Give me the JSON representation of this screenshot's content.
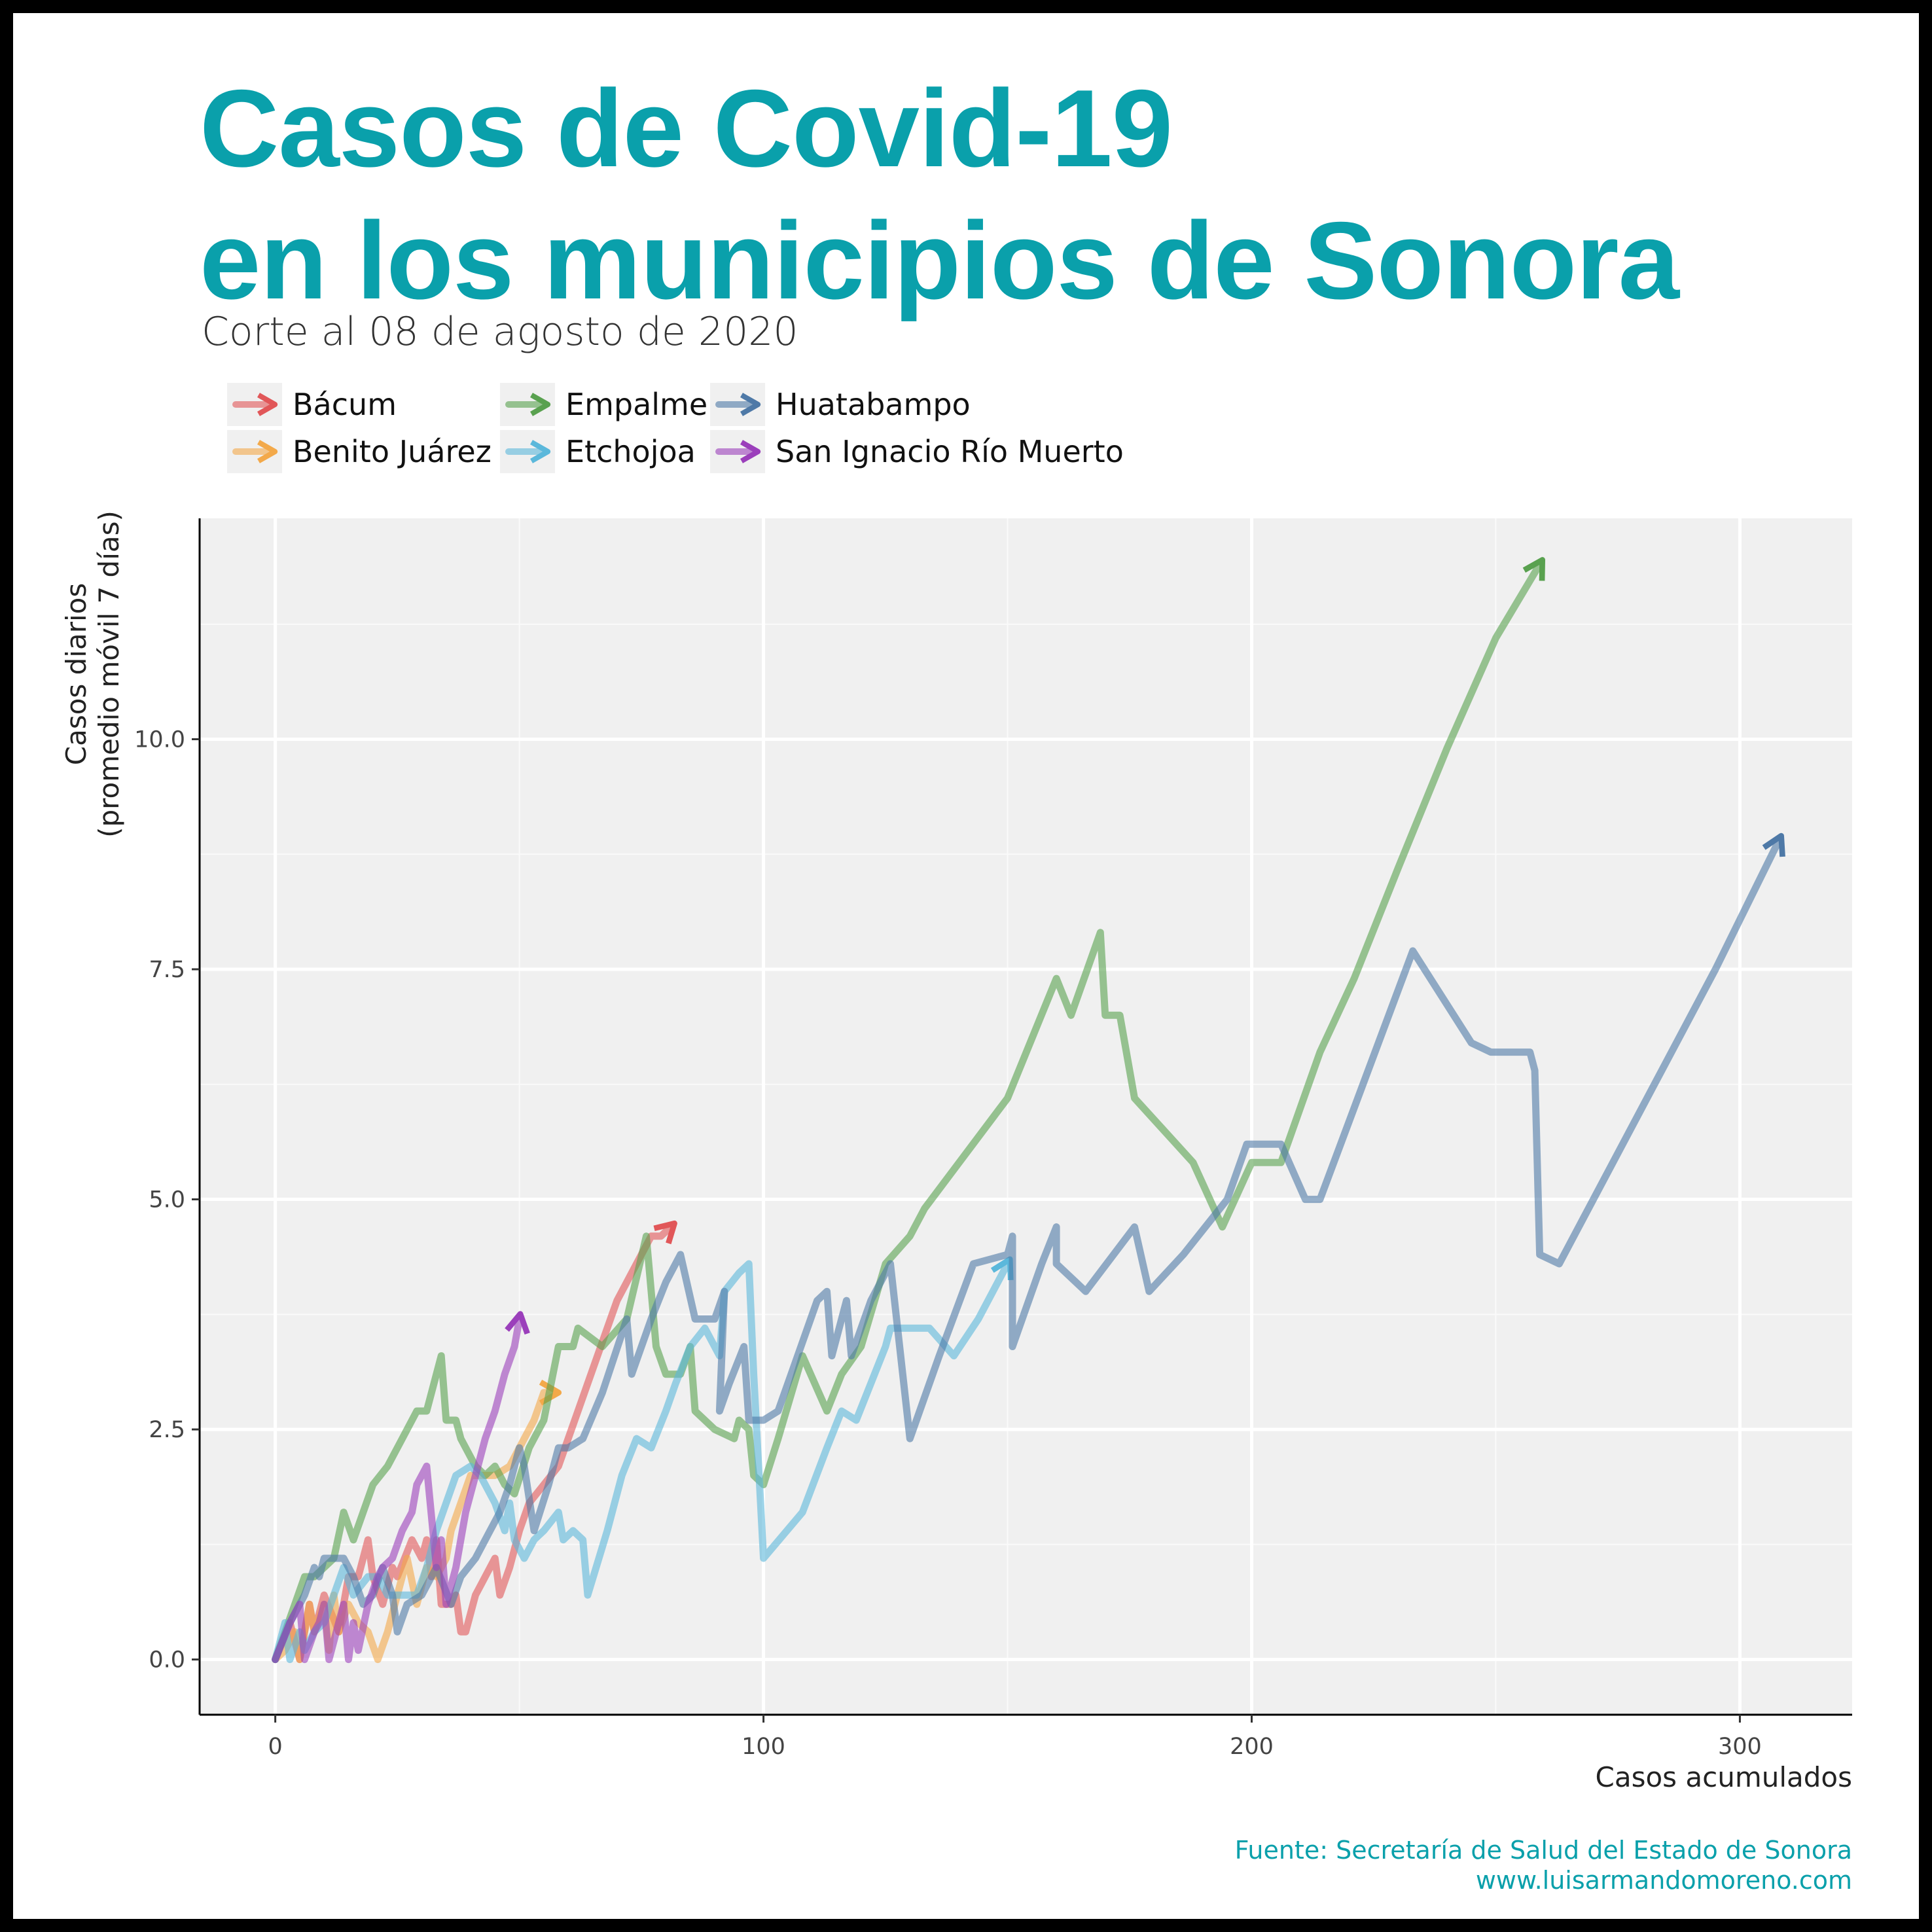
{
  "title_line1": "Casos de Covid-19",
  "title_line2": "en los municipios de Sonora",
  "subtitle": "Corte al 08 de agosto de 2020",
  "caption_line1": "Fuente: Secretaría de Salud del Estado de Sonora",
  "caption_line2": "www.luisarmandomoreno.com",
  "chart_data": {
    "type": "line",
    "xlabel": "Casos acumulados",
    "ylabel_line1": "Casos diarios",
    "ylabel_line2": "(promedio móvil 7 días)",
    "xlim": [
      -15.5,
      323
    ],
    "ylim": [
      -0.6,
      12.4
    ],
    "x_ticks": [
      0,
      100,
      200,
      300
    ],
    "x_tick_labels": [
      "0",
      "100",
      "200",
      "300"
    ],
    "y_ticks": [
      0,
      2.5,
      5,
      7.5,
      10
    ],
    "y_tick_labels": [
      "0.0",
      "2.5",
      "5.0",
      "7.5",
      "10.0"
    ],
    "grid": true,
    "legend_position": "top-left",
    "series": [
      {
        "name": "Bácum",
        "color": "#e15759",
        "points": [
          [
            0,
            0
          ],
          [
            3,
            0.4
          ],
          [
            5,
            0
          ],
          [
            7,
            0.6
          ],
          [
            8,
            0.3
          ],
          [
            10,
            0.7
          ],
          [
            13,
            0.3
          ],
          [
            15,
            0.9
          ],
          [
            17,
            0.9
          ],
          [
            19,
            1.3
          ],
          [
            20,
            0.9
          ],
          [
            22,
            0.6
          ],
          [
            24,
            1.0
          ],
          [
            25,
            0.9
          ],
          [
            28,
            1.3
          ],
          [
            30,
            1.1
          ],
          [
            31,
            1.3
          ],
          [
            32,
            0.9
          ],
          [
            33,
            1.3
          ],
          [
            34,
            0.6
          ],
          [
            36,
            0.6
          ],
          [
            37,
            0.7
          ],
          [
            38,
            0.3
          ],
          [
            39,
            0.3
          ],
          [
            41,
            0.7
          ],
          [
            43,
            0.9
          ],
          [
            45,
            1.1
          ],
          [
            46,
            0.7
          ],
          [
            48,
            1.0
          ],
          [
            50,
            1.4
          ],
          [
            52,
            1.7
          ],
          [
            55,
            1.9
          ],
          [
            58,
            2.1
          ],
          [
            62,
            2.7
          ],
          [
            66,
            3.3
          ],
          [
            70,
            3.9
          ],
          [
            74,
            4.3
          ],
          [
            77,
            4.6
          ],
          [
            79,
            4.6
          ],
          [
            81,
            4.7
          ]
        ]
      },
      {
        "name": "Benito Juárez",
        "color": "#f3a94a",
        "points": [
          [
            0,
            0
          ],
          [
            2,
            0.1
          ],
          [
            4,
            0.3
          ],
          [
            5,
            0
          ],
          [
            7,
            0.6
          ],
          [
            8,
            0.3
          ],
          [
            10,
            0.6
          ],
          [
            11,
            0.1
          ],
          [
            12,
            0.7
          ],
          [
            13,
            0.3
          ],
          [
            15,
            0.6
          ],
          [
            17,
            0.4
          ],
          [
            19,
            0.3
          ],
          [
            21,
            0
          ],
          [
            23,
            0.3
          ],
          [
            25,
            0.7
          ],
          [
            27,
            1.1
          ],
          [
            29,
            0.6
          ],
          [
            31,
            1.0
          ],
          [
            33,
            0.9
          ],
          [
            35,
            1.1
          ],
          [
            36,
            1.4
          ],
          [
            38,
            1.7
          ],
          [
            40,
            2.0
          ],
          [
            42,
            2.0
          ],
          [
            45,
            2.0
          ],
          [
            48,
            2.1
          ],
          [
            50,
            2.3
          ],
          [
            53,
            2.6
          ],
          [
            55,
            2.9
          ],
          [
            57,
            2.9
          ]
        ]
      },
      {
        "name": "Empalme",
        "color": "#59a14f",
        "points": [
          [
            0,
            0
          ],
          [
            4,
            0.6
          ],
          [
            6,
            0.9
          ],
          [
            8,
            0.9
          ],
          [
            10,
            1.0
          ],
          [
            12,
            1.1
          ],
          [
            14,
            1.6
          ],
          [
            16,
            1.3
          ],
          [
            18,
            1.6
          ],
          [
            20,
            1.9
          ],
          [
            23,
            2.1
          ],
          [
            26,
            2.4
          ],
          [
            29,
            2.7
          ],
          [
            31,
            2.7
          ],
          [
            33,
            3.1
          ],
          [
            34,
            3.3
          ],
          [
            35,
            2.6
          ],
          [
            37,
            2.6
          ],
          [
            38,
            2.4
          ],
          [
            41,
            2.1
          ],
          [
            43,
            2.0
          ],
          [
            45,
            2.1
          ],
          [
            47,
            1.9
          ],
          [
            49,
            1.8
          ],
          [
            52,
            2.3
          ],
          [
            55,
            2.6
          ],
          [
            58,
            3.4
          ],
          [
            61,
            3.4
          ],
          [
            62,
            3.6
          ],
          [
            67,
            3.4
          ],
          [
            72,
            3.7
          ],
          [
            76,
            4.6
          ],
          [
            78,
            3.4
          ],
          [
            80,
            3.1
          ],
          [
            83,
            3.1
          ],
          [
            85,
            3.4
          ],
          [
            86,
            2.7
          ],
          [
            90,
            2.5
          ],
          [
            94,
            2.4
          ],
          [
            95,
            2.6
          ],
          [
            97,
            2.5
          ],
          [
            98,
            2.0
          ],
          [
            100,
            1.9
          ],
          [
            103,
            2.4
          ],
          [
            108,
            3.3
          ],
          [
            113,
            2.7
          ],
          [
            116,
            3.1
          ],
          [
            120,
            3.4
          ],
          [
            125,
            4.3
          ],
          [
            130,
            4.6
          ],
          [
            133,
            4.9
          ],
          [
            150,
            6.1
          ],
          [
            160,
            7.4
          ],
          [
            163,
            7.0
          ],
          [
            169,
            7.9
          ],
          [
            170,
            7.0
          ],
          [
            173,
            7.0
          ],
          [
            176,
            6.1
          ],
          [
            188,
            5.4
          ],
          [
            194,
            4.7
          ],
          [
            200,
            5.4
          ],
          [
            206,
            5.4
          ],
          [
            214,
            6.6
          ],
          [
            221,
            7.4
          ],
          [
            230,
            8.6
          ],
          [
            240,
            9.9
          ],
          [
            250,
            11.1
          ],
          [
            259,
            11.9
          ]
        ]
      },
      {
        "name": "Etchojoa",
        "color": "#5bb8db",
        "points": [
          [
            0,
            0
          ],
          [
            2,
            0.4
          ],
          [
            3,
            0
          ],
          [
            5,
            0.3
          ],
          [
            6,
            0.1
          ],
          [
            8,
            0.3
          ],
          [
            10,
            0.4
          ],
          [
            12,
            0.7
          ],
          [
            14,
            1.0
          ],
          [
            16,
            0.7
          ],
          [
            19,
            0.9
          ],
          [
            21,
            0.9
          ],
          [
            23,
            0.7
          ],
          [
            26,
            0.7
          ],
          [
            29,
            0.7
          ],
          [
            31,
            1.0
          ],
          [
            33,
            1.4
          ],
          [
            35,
            1.7
          ],
          [
            37,
            2.0
          ],
          [
            40,
            2.1
          ],
          [
            42,
            2.0
          ],
          [
            45,
            1.7
          ],
          [
            47,
            1.4
          ],
          [
            48,
            1.7
          ],
          [
            49,
            1.3
          ],
          [
            51,
            1.1
          ],
          [
            53,
            1.3
          ],
          [
            55,
            1.4
          ],
          [
            58,
            1.6
          ],
          [
            59,
            1.3
          ],
          [
            61,
            1.4
          ],
          [
            63,
            1.3
          ],
          [
            64,
            0.7
          ],
          [
            68,
            1.4
          ],
          [
            71,
            2.0
          ],
          [
            74,
            2.4
          ],
          [
            77,
            2.3
          ],
          [
            80,
            2.7
          ],
          [
            82,
            3.0
          ],
          [
            85,
            3.4
          ],
          [
            88,
            3.6
          ],
          [
            91,
            3.3
          ],
          [
            92,
            4.0
          ],
          [
            95,
            4.2
          ],
          [
            97,
            4.3
          ],
          [
            98,
            3.1
          ],
          [
            100,
            1.1
          ],
          [
            108,
            1.6
          ],
          [
            113,
            2.3
          ],
          [
            116,
            2.7
          ],
          [
            119,
            2.6
          ],
          [
            125,
            3.4
          ],
          [
            126,
            3.6
          ],
          [
            129,
            3.6
          ],
          [
            134,
            3.6
          ],
          [
            139,
            3.3
          ],
          [
            144,
            3.7
          ],
          [
            150,
            4.3
          ]
        ]
      },
      {
        "name": "Huatabampo",
        "color": "#4e79a7",
        "points": [
          [
            0,
            0
          ],
          [
            3,
            0.4
          ],
          [
            6,
            0.7
          ],
          [
            8,
            1.0
          ],
          [
            9,
            0.9
          ],
          [
            10,
            1.1
          ],
          [
            14,
            1.1
          ],
          [
            16,
            0.9
          ],
          [
            18,
            0.6
          ],
          [
            20,
            0.7
          ],
          [
            22,
            1.0
          ],
          [
            24,
            0.7
          ],
          [
            25,
            0.3
          ],
          [
            27,
            0.6
          ],
          [
            30,
            0.7
          ],
          [
            33,
            1.0
          ],
          [
            36,
            0.6
          ],
          [
            38,
            0.9
          ],
          [
            41,
            1.1
          ],
          [
            44,
            1.4
          ],
          [
            46,
            1.6
          ],
          [
            48,
            1.9
          ],
          [
            50,
            2.3
          ],
          [
            51,
            2.1
          ],
          [
            53,
            1.4
          ],
          [
            56,
            1.9
          ],
          [
            58,
            2.3
          ],
          [
            60,
            2.3
          ],
          [
            63,
            2.4
          ],
          [
            67,
            2.9
          ],
          [
            72,
            3.7
          ],
          [
            73,
            3.1
          ],
          [
            77,
            3.7
          ],
          [
            80,
            4.1
          ],
          [
            83,
            4.4
          ],
          [
            86,
            3.7
          ],
          [
            90,
            3.7
          ],
          [
            92,
            4.0
          ],
          [
            91,
            2.7
          ],
          [
            93,
            3.0
          ],
          [
            96,
            3.4
          ],
          [
            97,
            2.6
          ],
          [
            100,
            2.6
          ],
          [
            103,
            2.7
          ],
          [
            107,
            3.3
          ],
          [
            111,
            3.9
          ],
          [
            113,
            4.0
          ],
          [
            114,
            3.3
          ],
          [
            117,
            3.9
          ],
          [
            118,
            3.3
          ],
          [
            122,
            3.9
          ],
          [
            126,
            4.3
          ],
          [
            130,
            2.4
          ],
          [
            136,
            3.3
          ],
          [
            143,
            4.3
          ],
          [
            150,
            4.4
          ],
          [
            151,
            4.6
          ],
          [
            151,
            3.4
          ],
          [
            157,
            4.3
          ],
          [
            160,
            4.7
          ],
          [
            160,
            4.3
          ],
          [
            166,
            4.0
          ],
          [
            176,
            4.7
          ],
          [
            179,
            4.0
          ],
          [
            186,
            4.4
          ],
          [
            195,
            5.0
          ],
          [
            199,
            5.6
          ],
          [
            206,
            5.6
          ],
          [
            211,
            5.0
          ],
          [
            214,
            5.0
          ],
          [
            233,
            7.7
          ],
          [
            245,
            6.7
          ],
          [
            249,
            6.6
          ],
          [
            257,
            6.6
          ],
          [
            258,
            6.4
          ],
          [
            259,
            4.4
          ],
          [
            263,
            4.3
          ],
          [
            280,
            6.0
          ],
          [
            295,
            7.5
          ],
          [
            308,
            8.9
          ]
        ]
      },
      {
        "name": "San Ignacio Río Muerto",
        "color": "#9b3fbb",
        "points": [
          [
            0,
            0
          ],
          [
            3,
            0.4
          ],
          [
            5,
            0.6
          ],
          [
            6,
            0
          ],
          [
            8,
            0.3
          ],
          [
            9,
            0.4
          ],
          [
            10,
            0.6
          ],
          [
            11,
            0
          ],
          [
            13,
            0.4
          ],
          [
            14,
            0.6
          ],
          [
            15,
            0
          ],
          [
            16,
            0.4
          ],
          [
            17,
            0.1
          ],
          [
            19,
            0.6
          ],
          [
            21,
            0.9
          ],
          [
            22,
            1.0
          ],
          [
            24,
            1.1
          ],
          [
            26,
            1.4
          ],
          [
            28,
            1.6
          ],
          [
            29,
            1.9
          ],
          [
            31,
            2.1
          ],
          [
            33,
            1.0
          ],
          [
            34,
            1.3
          ],
          [
            35,
            0.6
          ],
          [
            37,
            1.0
          ],
          [
            39,
            1.6
          ],
          [
            41,
            2.0
          ],
          [
            43,
            2.4
          ],
          [
            45,
            2.7
          ],
          [
            47,
            3.1
          ],
          [
            49,
            3.4
          ],
          [
            50,
            3.7
          ]
        ]
      }
    ]
  }
}
